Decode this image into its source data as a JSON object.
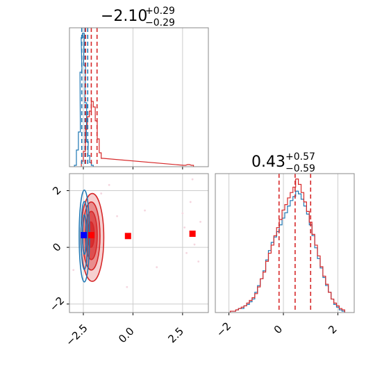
{
  "chart_data": {
    "type": "corner",
    "parameters": 2,
    "colors": {
      "blue": "#1f77b4",
      "red": "#d62728",
      "marker_blue": "#0000ff",
      "marker_red": "#ff0000",
      "grid": "#cccccc",
      "scatter": "#f5d6df"
    },
    "param1": {
      "title_value": "−2.10",
      "title_plus": "+0.29",
      "title_minus": "−0.29",
      "xlim": [
        -3.2,
        3.8
      ],
      "ticks": [
        -2.5,
        0.0,
        2.5
      ],
      "tick_labels": [
        "−2.5",
        "0.0",
        "2.5"
      ],
      "quantiles_blue": [
        -2.58,
        -2.42,
        -2.28
      ],
      "quantiles_red": [
        -2.39,
        -2.1,
        -1.81
      ],
      "hist_blue": {
        "x": [
          -2.9,
          -2.8,
          -2.7,
          -2.62,
          -2.56,
          -2.5,
          -2.44,
          -2.38,
          -2.3,
          -2.22,
          -2.14,
          -2.05
        ],
        "y": [
          0.01,
          0.12,
          0.25,
          0.68,
          0.93,
          0.96,
          0.73,
          0.46,
          0.18,
          0.08,
          0.03,
          0.01
        ]
      },
      "hist_red": {
        "x": [
          -2.55,
          -2.45,
          -2.35,
          -2.25,
          -2.15,
          -2.05,
          -1.95,
          -1.85,
          -1.75,
          -1.65,
          -1.55,
          2.6,
          2.8,
          3.0
        ],
        "y": [
          0.04,
          0.11,
          0.27,
          0.36,
          0.4,
          0.47,
          0.43,
          0.33,
          0.2,
          0.1,
          0.06,
          0.01,
          0.015,
          0.01
        ]
      }
    },
    "param2": {
      "title_value": "0.43",
      "title_plus": "+0.57",
      "title_minus": "−0.59",
      "xlim": [
        -2.5,
        2.6
      ],
      "ylim": [
        -2.3,
        2.6
      ],
      "ticks": [
        -2,
        0,
        2
      ],
      "tick_labels": [
        "−2",
        "0",
        "2"
      ],
      "quantiles": [
        -0.16,
        0.43,
        1.0
      ],
      "hist_blue": {
        "x": [
          -1.9,
          -1.8,
          -1.7,
          -1.6,
          -1.5,
          -1.4,
          -1.3,
          -1.2,
          -1.1,
          -1.0,
          -0.9,
          -0.8,
          -0.7,
          -0.6,
          -0.5,
          -0.4,
          -0.3,
          -0.2,
          -0.1,
          0.0,
          0.1,
          0.2,
          0.3,
          0.4,
          0.5,
          0.6,
          0.7,
          0.8,
          0.9,
          1.0,
          1.1,
          1.2,
          1.3,
          1.4,
          1.5,
          1.6,
          1.7,
          1.8,
          1.9,
          2.0,
          2.1,
          2.2
        ],
        "y": [
          0.01,
          0.01,
          0.02,
          0.03,
          0.03,
          0.05,
          0.06,
          0.08,
          0.1,
          0.15,
          0.2,
          0.25,
          0.31,
          0.39,
          0.46,
          0.52,
          0.56,
          0.6,
          0.65,
          0.7,
          0.74,
          0.79,
          0.83,
          0.86,
          0.9,
          0.88,
          0.84,
          0.79,
          0.73,
          0.65,
          0.57,
          0.48,
          0.4,
          0.33,
          0.26,
          0.2,
          0.15,
          0.1,
          0.06,
          0.04,
          0.02,
          0.01
        ]
      },
      "hist_red": {
        "x": [
          -1.9,
          -1.8,
          -1.7,
          -1.6,
          -1.5,
          -1.4,
          -1.3,
          -1.2,
          -1.1,
          -1.0,
          -0.9,
          -0.8,
          -0.7,
          -0.6,
          -0.5,
          -0.4,
          -0.3,
          -0.2,
          -0.1,
          0.0,
          0.1,
          0.2,
          0.3,
          0.4,
          0.5,
          0.6,
          0.7,
          0.8,
          0.9,
          1.0,
          1.1,
          1.2,
          1.3,
          1.4,
          1.5,
          1.6,
          1.7,
          1.8,
          1.9,
          2.0,
          2.1,
          2.2
        ],
        "y": [
          0.01,
          0.01,
          0.02,
          0.03,
          0.04,
          0.05,
          0.07,
          0.09,
          0.11,
          0.14,
          0.19,
          0.25,
          0.3,
          0.38,
          0.44,
          0.5,
          0.57,
          0.63,
          0.69,
          0.76,
          0.8,
          0.85,
          0.89,
          0.93,
          0.99,
          0.95,
          0.89,
          0.82,
          0.75,
          0.67,
          0.58,
          0.5,
          0.42,
          0.34,
          0.27,
          0.21,
          0.15,
          0.1,
          0.07,
          0.05,
          0.03,
          0.02
        ]
      }
    },
    "joint": {
      "contours_red": [
        {
          "cx": -2.05,
          "cy": 0.35,
          "rx": 0.58,
          "ry": 1.55
        },
        {
          "cx": -2.1,
          "cy": 0.4,
          "rx": 0.44,
          "ry": 1.2
        },
        {
          "cx": -2.1,
          "cy": 0.42,
          "rx": 0.3,
          "ry": 0.85
        },
        {
          "cx": -2.12,
          "cy": 0.45,
          "rx": 0.17,
          "ry": 0.45
        }
      ],
      "contours_blue": [
        {
          "cx": -2.45,
          "cy": 0.4,
          "rx": 0.26,
          "ry": 1.62
        },
        {
          "cx": -2.45,
          "cy": 0.42,
          "rx": 0.17,
          "ry": 1.2
        },
        {
          "cx": -2.45,
          "cy": 0.45,
          "rx": 0.09,
          "ry": 0.7
        }
      ],
      "markers_red": [
        {
          "x": -2.1,
          "y": 0.43
        },
        {
          "x": -0.25,
          "y": 0.4
        },
        {
          "x": 3.0,
          "y": 0.48
        }
      ],
      "markers_blue": [
        {
          "x": -2.48,
          "y": 0.43
        }
      ],
      "outliers": [
        {
          "x": -1.6,
          "y": 1.9
        },
        {
          "x": -1.2,
          "y": 2.2
        },
        {
          "x": -0.8,
          "y": 1.1
        },
        {
          "x": -0.3,
          "y": -1.4
        },
        {
          "x": 0.6,
          "y": 1.3
        },
        {
          "x": 1.2,
          "y": -0.7
        },
        {
          "x": 2.5,
          "y": 1.2
        },
        {
          "x": 2.7,
          "y": -0.2
        },
        {
          "x": 2.9,
          "y": 1.6
        },
        {
          "x": 3.1,
          "y": 0.1
        },
        {
          "x": 3.3,
          "y": -0.5
        },
        {
          "x": 3.4,
          "y": 0.9
        },
        {
          "x": 2.6,
          "y": 0.7
        },
        {
          "x": 3.0,
          "y": 2.4
        },
        {
          "x": -3.0,
          "y": -0.8
        }
      ]
    }
  }
}
